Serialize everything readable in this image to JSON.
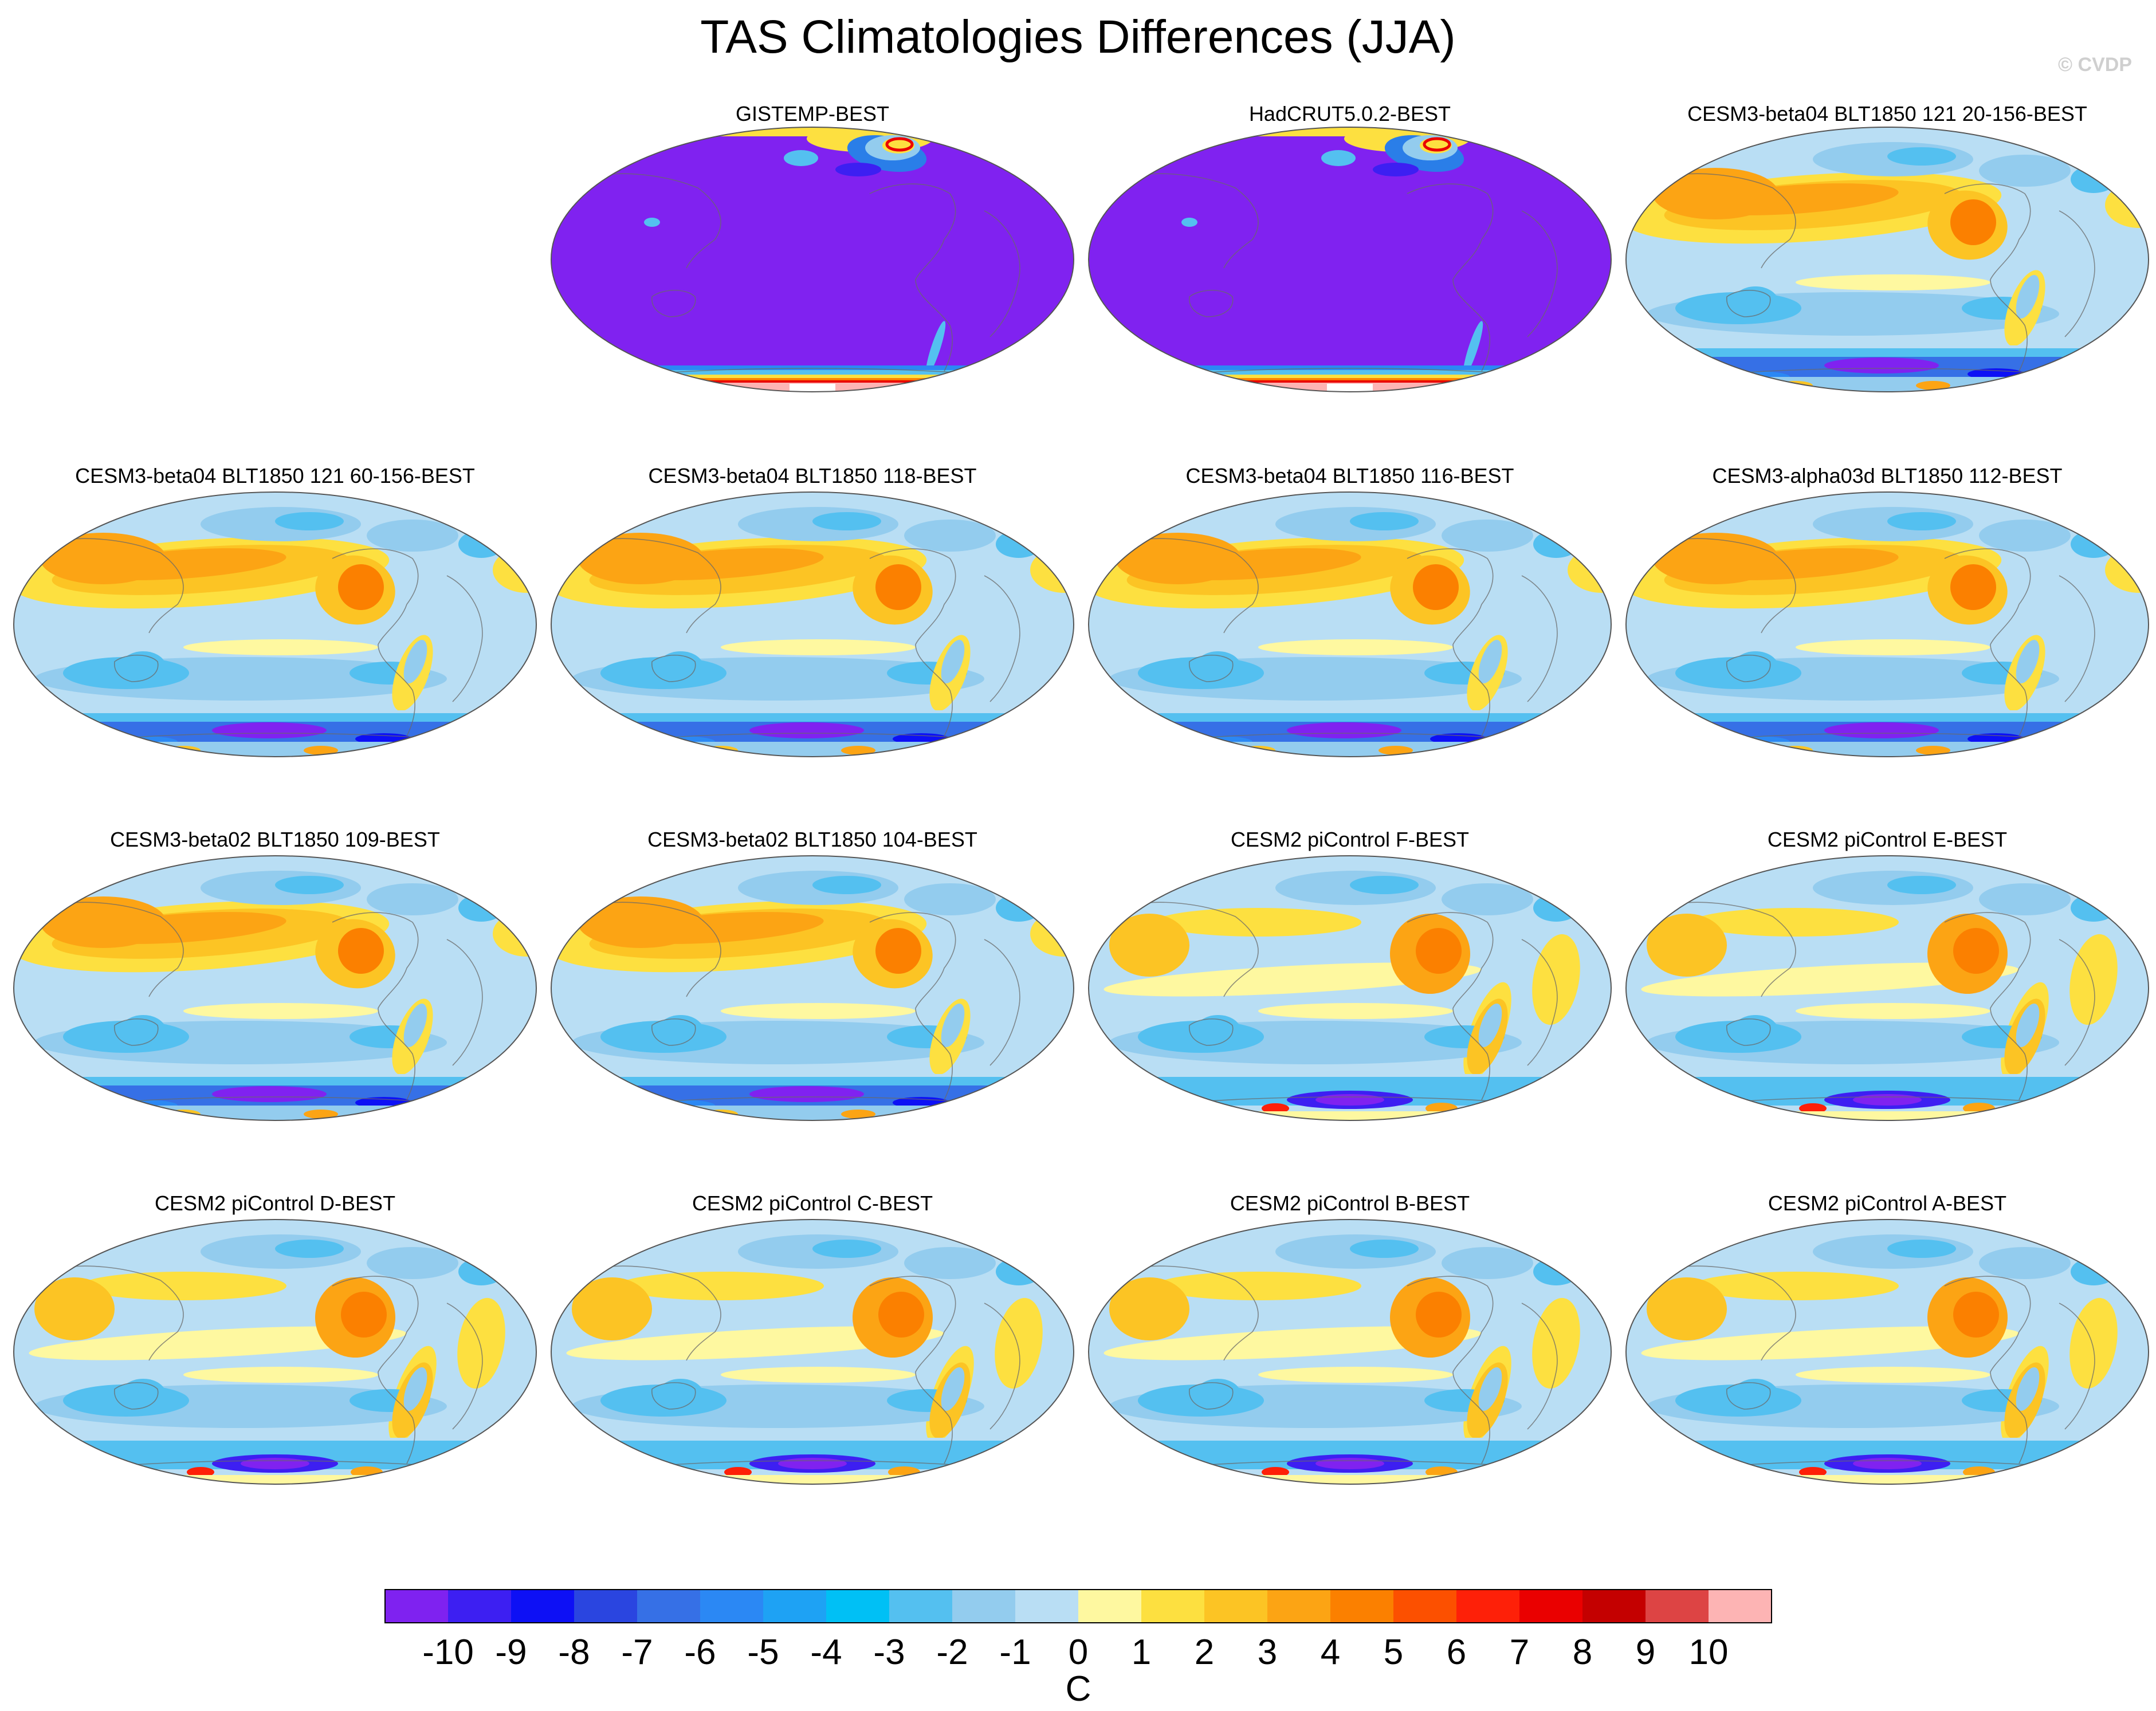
{
  "figure": {
    "title": "TAS Climatologies Differences (JJA)",
    "watermark": "© CVDP"
  },
  "panels": [
    {
      "label": "GISTEMP-BEST",
      "style": "obs"
    },
    {
      "label": "HadCRUT5.0.2-BEST",
      "style": "obs"
    },
    {
      "label": "CESM3-beta04 BLT1850 121 20-156-BEST",
      "style": "beta"
    },
    {
      "label": "CESM3-beta04 BLT1850 121 60-156-BEST",
      "style": "beta"
    },
    {
      "label": "CESM3-beta04 BLT1850 118-BEST",
      "style": "beta"
    },
    {
      "label": "CESM3-beta04 BLT1850 116-BEST",
      "style": "beta"
    },
    {
      "label": "CESM3-alpha03d BLT1850 112-BEST",
      "style": "beta"
    },
    {
      "label": "CESM3-beta02 BLT1850 109-BEST",
      "style": "beta"
    },
    {
      "label": "CESM3-beta02 BLT1850 104-BEST",
      "style": "beta"
    },
    {
      "label": "CESM2 piControl F-BEST",
      "style": "cesm2"
    },
    {
      "label": "CESM2 piControl E-BEST",
      "style": "cesm2"
    },
    {
      "label": "CESM2 piControl D-BEST",
      "style": "cesm2"
    },
    {
      "label": "CESM2 piControl C-BEST",
      "style": "cesm2"
    },
    {
      "label": "CESM2 piControl B-BEST",
      "style": "cesm2"
    },
    {
      "label": "CESM2 piControl A-BEST",
      "style": "cesm2"
    }
  ],
  "colorbar": {
    "unit": "C",
    "tick_labels": [
      "-10",
      "-9",
      "-8",
      "-7",
      "-6",
      "-5",
      "-4",
      "-3",
      "-2",
      "-1",
      "0",
      "1",
      "2",
      "3",
      "4",
      "5",
      "6",
      "7",
      "8",
      "9",
      "10"
    ],
    "colors": [
      "#7f22f0",
      "#3d1ff2",
      "#0d10f5",
      "#2a45e0",
      "#3670e6",
      "#2b88f4",
      "#1ea2f4",
      "#00c0f5",
      "#54c0f0",
      "#93ccee",
      "#b9def4",
      "#fef8a0",
      "#fde040",
      "#fcc424",
      "#fca414",
      "#fb8000",
      "#fc5000",
      "#fe2008",
      "#ea0000",
      "#c40000",
      "#dd4444",
      "#fdb4b4"
    ]
  }
}
